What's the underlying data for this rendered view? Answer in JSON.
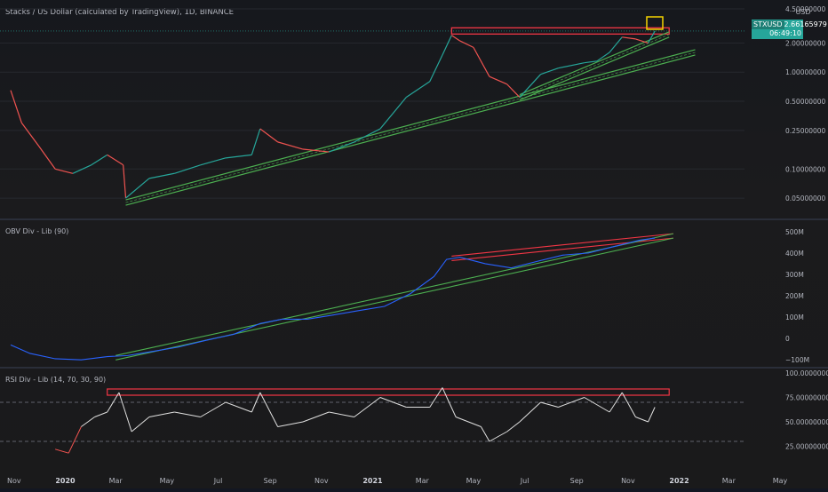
{
  "header": {
    "title": "Stacks / US Dollar (calculated by TradingView), 1D, BINANCE",
    "currency": "USD",
    "symbol": "STXUSD",
    "price": "2.66165979",
    "countdown": "06:49:10"
  },
  "colors": {
    "up": "#26a69a",
    "down": "#ef5350",
    "resistance": "#f23645",
    "support": "#4caf50",
    "obv": "#2962ff",
    "rsi": "#e0e0e0",
    "highlight": "#f5d400"
  },
  "chart_data": [
    {
      "type": "line",
      "title": "Stacks / US Dollar (calculated by TradingView), 1D, BINANCE",
      "scale": "log",
      "ylabel": "USD",
      "y_ticks": [
        "4.50000000",
        "2.00000000",
        "1.00000000",
        "0.50000000",
        "0.25000000",
        "0.10000000",
        "0.05000000"
      ],
      "x": [
        "2019-10-28",
        "2019-11-10",
        "2019-12-01",
        "2019-12-20",
        "2020-01-10",
        "2020-02-01",
        "2020-02-20",
        "2020-03-10",
        "2020-03-13",
        "2020-04-10",
        "2020-05-10",
        "2020-06-10",
        "2020-07-10",
        "2020-08-10",
        "2020-08-20",
        "2020-09-10",
        "2020-10-10",
        "2020-11-10",
        "2020-12-10",
        "2021-01-10",
        "2021-02-10",
        "2021-03-10",
        "2021-03-25",
        "2021-04-05",
        "2021-04-15",
        "2021-05-01",
        "2021-05-20",
        "2021-06-10",
        "2021-06-25",
        "2021-07-20",
        "2021-08-10",
        "2021-09-10",
        "2021-09-25",
        "2021-10-10",
        "2021-10-25",
        "2021-11-10",
        "2021-11-25",
        "2021-12-03"
      ],
      "series": [
        {
          "values": [
            0.65,
            0.3,
            0.17,
            0.1,
            0.09,
            0.11,
            0.14,
            0.11,
            0.05,
            0.08,
            0.09,
            0.11,
            0.13,
            0.14,
            0.26,
            0.19,
            0.16,
            0.15,
            0.19,
            0.26,
            0.55,
            0.8,
            1.5,
            2.4,
            2.1,
            1.8,
            0.9,
            0.75,
            0.55,
            0.95,
            1.1,
            1.25,
            1.3,
            1.6,
            2.3,
            2.2,
            2.0,
            2.66
          ]
        }
      ],
      "trendlines": [
        {
          "role": "resistance",
          "from": [
            "2021-04-05",
            2.75
          ],
          "to": [
            "2021-12-20",
            2.75
          ]
        },
        {
          "role": "support",
          "from": [
            "2020-03-13",
            0.045
          ],
          "to": [
            "2022-01-20",
            1.6
          ]
        },
        {
          "role": "support",
          "from": [
            "2021-06-25",
            0.55
          ],
          "to": [
            "2021-12-20",
            2.45
          ]
        }
      ]
    },
    {
      "type": "line",
      "title": "OBV Div - Lib (90)",
      "y_ticks": [
        "500M",
        "400M",
        "300M",
        "200M",
        "100M",
        "0",
        "−100M"
      ],
      "ylim": [
        -120,
        520
      ],
      "x": [
        "2019-10-28",
        "2019-11-20",
        "2019-12-20",
        "2020-01-20",
        "2020-02-20",
        "2020-03-15",
        "2020-04-15",
        "2020-05-15",
        "2020-06-15",
        "2020-07-20",
        "2020-08-20",
        "2020-09-15",
        "2020-10-15",
        "2020-11-15",
        "2020-12-15",
        "2021-01-15",
        "2021-02-15",
        "2021-03-15",
        "2021-03-30",
        "2021-04-15",
        "2021-05-15",
        "2021-06-15",
        "2021-07-15",
        "2021-08-15",
        "2021-09-15",
        "2021-10-15",
        "2021-11-15",
        "2021-12-03"
      ],
      "series": [
        {
          "values": [
            -30,
            -70,
            -95,
            -100,
            -85,
            -80,
            -60,
            -40,
            -10,
            20,
            70,
            90,
            90,
            110,
            130,
            150,
            210,
            290,
            370,
            380,
            350,
            330,
            360,
            390,
            400,
            430,
            460,
            470
          ]
        }
      ],
      "trendlines": [
        {
          "role": "resistance",
          "from": [
            "2021-04-05",
            375
          ],
          "to": [
            "2021-12-25",
            480
          ]
        },
        {
          "role": "support",
          "from": [
            "2020-03-01",
            -90
          ],
          "to": [
            "2021-12-25",
            480
          ]
        }
      ]
    },
    {
      "type": "line",
      "title": "RSI Div - Lib (14, 70, 30, 90)",
      "y_ticks": [
        "100.00000000",
        "75.00000000",
        "50.00000000",
        "25.00000000"
      ],
      "ylim": [
        0,
        100
      ],
      "levels": [
        70,
        30
      ],
      "x": [
        "2019-12-20",
        "2020-01-05",
        "2020-01-20",
        "2020-02-05",
        "2020-02-20",
        "2020-03-05",
        "2020-03-20",
        "2020-04-10",
        "2020-05-10",
        "2020-06-10",
        "2020-07-10",
        "2020-08-10",
        "2020-08-20",
        "2020-09-10",
        "2020-10-10",
        "2020-11-10",
        "2020-12-10",
        "2021-01-10",
        "2021-02-10",
        "2021-03-10",
        "2021-03-25",
        "2021-04-10",
        "2021-05-10",
        "2021-05-20",
        "2021-06-10",
        "2021-06-25",
        "2021-07-20",
        "2021-08-10",
        "2021-09-10",
        "2021-10-10",
        "2021-10-25",
        "2021-11-10",
        "2021-11-25",
        "2021-12-03"
      ],
      "series": [
        {
          "values": [
            22,
            18,
            45,
            55,
            60,
            80,
            40,
            55,
            60,
            55,
            70,
            60,
            80,
            45,
            50,
            60,
            55,
            75,
            65,
            65,
            85,
            55,
            45,
            30,
            40,
            50,
            70,
            65,
            75,
            60,
            80,
            55,
            50,
            65
          ]
        }
      ],
      "trendlines": [
        {
          "role": "resistance",
          "from": [
            "2020-02-20",
            80
          ],
          "to": [
            "2021-12-20",
            80
          ]
        }
      ]
    }
  ],
  "x_axis_labels": [
    "Nov",
    "2020",
    "Mar",
    "May",
    "Jul",
    "Sep",
    "Nov",
    "2021",
    "Mar",
    "May",
    "Jul",
    "Sep",
    "Nov",
    "2022",
    "Mar",
    "May"
  ]
}
